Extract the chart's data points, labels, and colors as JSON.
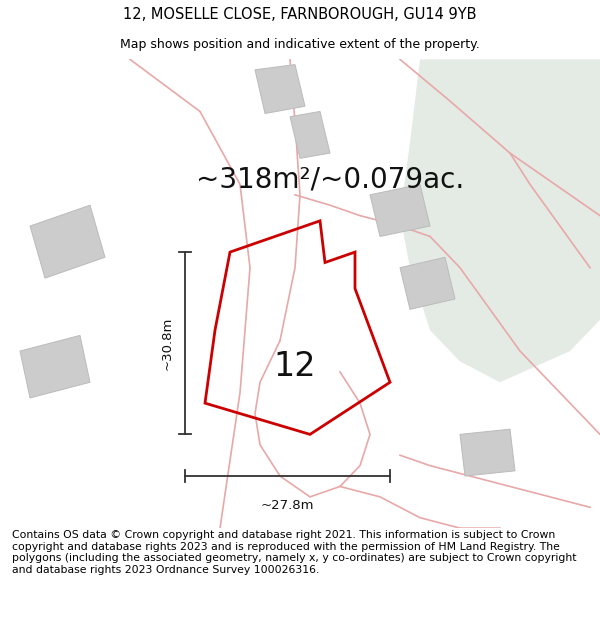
{
  "title": "12, MOSELLE CLOSE, FARNBOROUGH, GU14 9YB",
  "subtitle": "Map shows position and indicative extent of the property.",
  "area_label": "~318m²/~0.079ac.",
  "number_label": "12",
  "dim_vertical": "~30.8m",
  "dim_horizontal": "~27.8m",
  "footer": "Contains OS data © Crown copyright and database right 2021. This information is subject to Crown copyright and database rights 2023 and is reproduced with the permission of HM Land Registry. The polygons (including the associated geometry, namely x, y co-ordinates) are subject to Crown copyright and database rights 2023 Ordnance Survey 100026316.",
  "map_bg": "#f0efec",
  "red_plot_color": "#cc0000",
  "pink_boundary_color": "#e8a8a8",
  "grey_building_color": "#cccccc",
  "grey_building_edge": "#bbbbbb",
  "green_area_color": "#e4ebe4",
  "title_fontsize": 10.5,
  "subtitle_fontsize": 9,
  "area_fontsize": 20,
  "number_fontsize": 24,
  "dim_fontsize": 9.5,
  "footer_fontsize": 7.8
}
